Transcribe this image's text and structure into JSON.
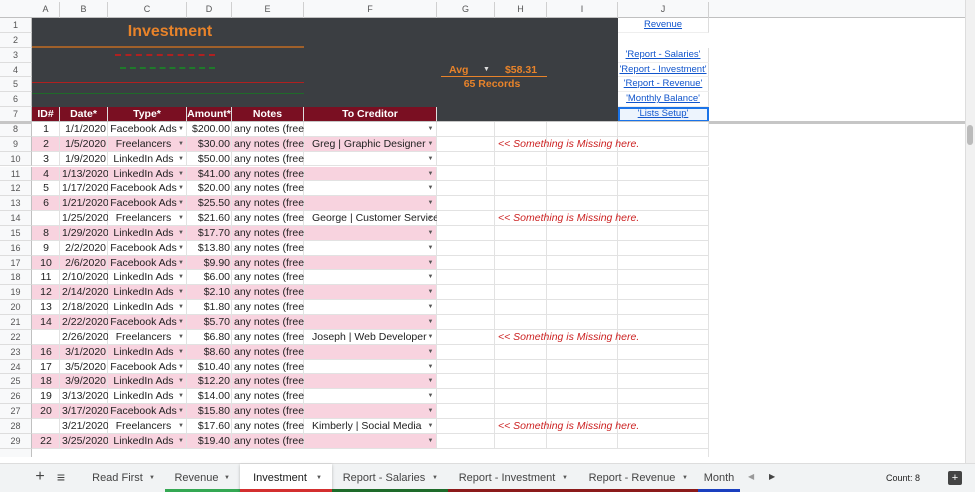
{
  "columns": [
    "A",
    "B",
    "C",
    "D",
    "E",
    "F",
    "G",
    "H",
    "I",
    "J"
  ],
  "row_numbers": [
    1,
    2,
    3,
    4,
    5,
    6,
    7,
    8,
    9,
    10,
    11,
    12,
    13,
    14,
    15,
    16,
    17,
    18,
    19,
    20,
    21,
    22,
    23,
    24,
    25,
    26,
    27,
    28,
    29
  ],
  "header": {
    "title": "Investment",
    "summary_function": "Avg",
    "summary_value": "$58.31",
    "record_count": "65 Records"
  },
  "links": [
    "Revenue",
    "'Report - Salaries'",
    "'Report - Investment'",
    "'Report - Revenue'",
    "'Monthly Balance'",
    "'Lists Setup'"
  ],
  "table": {
    "headers": [
      "ID#",
      "Date*",
      "Type*",
      "Amount*",
      "Notes",
      "To Creditor"
    ],
    "rows": [
      [
        1,
        "1/1/2020",
        "Facebook Ads",
        "$200.00",
        "any notes (free)",
        null,
        null
      ],
      [
        2,
        "1/5/2020",
        "Freelancers",
        "$30.00",
        "any notes (free)",
        "Greg | Graphic Designer",
        "<< Something is Missing here."
      ],
      [
        3,
        "1/9/2020",
        "LinkedIn Ads",
        "$50.00",
        "any notes (free)",
        null,
        null
      ],
      [
        4,
        "1/13/2020",
        "LinkedIn Ads",
        "$41.00",
        "any notes (free)",
        null,
        null
      ],
      [
        5,
        "1/17/2020",
        "Facebook Ads",
        "$20.00",
        "any notes (free)",
        null,
        null
      ],
      [
        6,
        "1/21/2020",
        "Facebook Ads",
        "$25.50",
        "any notes (free)",
        null,
        null
      ],
      [
        null,
        "1/25/2020",
        "Freelancers",
        "$21.60",
        "any notes (free)",
        "George | Customer Service",
        "<< Something is Missing here."
      ],
      [
        8,
        "1/29/2020",
        "LinkedIn Ads",
        "$17.70",
        "any notes (free)",
        null,
        null
      ],
      [
        9,
        "2/2/2020",
        "Facebook Ads",
        "$13.80",
        "any notes (free)",
        null,
        null
      ],
      [
        10,
        "2/6/2020",
        "Facebook Ads",
        "$9.90",
        "any notes (free)",
        null,
        null
      ],
      [
        11,
        "2/10/2020",
        "LinkedIn Ads",
        "$6.00",
        "any notes (free)",
        null,
        null
      ],
      [
        12,
        "2/14/2020",
        "LinkedIn Ads",
        "$2.10",
        "any notes (free)",
        null,
        null
      ],
      [
        13,
        "2/18/2020",
        "LinkedIn Ads",
        "$1.80",
        "any notes (free)",
        null,
        null
      ],
      [
        14,
        "2/22/2020",
        "Facebook Ads",
        "$5.70",
        "any notes (free)",
        null,
        null
      ],
      [
        null,
        "2/26/2020",
        "Freelancers",
        "$6.80",
        "any notes (free)",
        "Joseph | Web Developer",
        "<< Something is Missing here."
      ],
      [
        16,
        "3/1/2020",
        "LinkedIn Ads",
        "$8.60",
        "any notes (free)",
        null,
        null
      ],
      [
        17,
        "3/5/2020",
        "Facebook Ads",
        "$10.40",
        "any notes (free)",
        null,
        null
      ],
      [
        18,
        "3/9/2020",
        "LinkedIn Ads",
        "$12.20",
        "any notes (free)",
        null,
        null
      ],
      [
        19,
        "3/13/2020",
        "LinkedIn Ads",
        "$14.00",
        "any notes (free)",
        null,
        null
      ],
      [
        20,
        "3/17/2020",
        "Facebook Ads",
        "$15.80",
        "any notes (free)",
        null,
        null
      ],
      [
        null,
        "3/21/2020",
        "Freelancers",
        "$17.60",
        "any notes (free)",
        "Kimberly | Social Media",
        "<< Something is Missing here."
      ],
      [
        22,
        "3/25/2020",
        "LinkedIn Ads",
        "$19.40",
        "any notes (free)",
        null,
        null
      ]
    ]
  },
  "tabs": [
    "Read First",
    "Revenue",
    "Investment",
    "Report - Salaries",
    "Report - Investment",
    "Report - Revenue",
    "Month"
  ],
  "status": "Count: 8"
}
